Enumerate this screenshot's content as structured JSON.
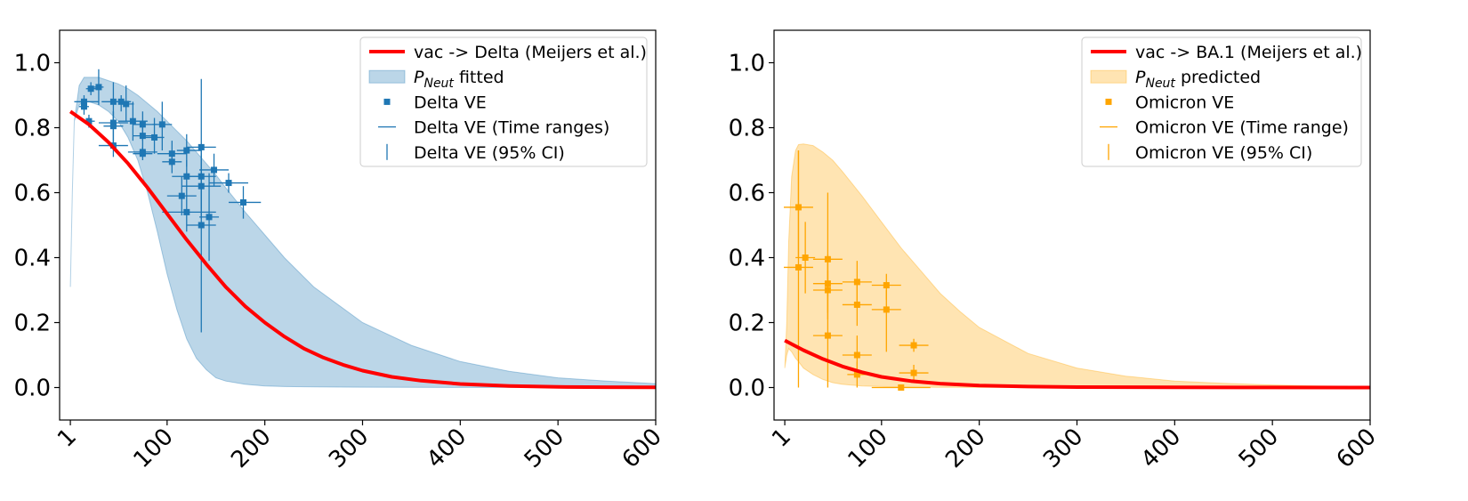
{
  "chart_data": [
    {
      "type": "line",
      "panel": "left",
      "xlim": [
        -10,
        600
      ],
      "ylim": [
        -0.1,
        1.1
      ],
      "xticks": [
        1,
        100,
        200,
        300,
        400,
        500,
        600
      ],
      "xtick_labels": [
        "1",
        "100",
        "200",
        "300",
        "400",
        "500",
        "600"
      ],
      "yticks": [
        0.0,
        0.2,
        0.4,
        0.6,
        0.8,
        1.0
      ],
      "ytick_labels": [
        "0.0",
        "0.2",
        "0.4",
        "0.6",
        "0.8",
        "1.0"
      ],
      "legend_position": "top-right",
      "colors": {
        "line": "#ff0000",
        "band": "#1f77b4",
        "points": "#1f77b4"
      },
      "legend": [
        {
          "kind": "line",
          "text": "vac -> Delta (Meijers et al.)"
        },
        {
          "kind": "band",
          "prefix": "P",
          "sub": "Neut",
          "text": " fitted"
        },
        {
          "kind": "marker",
          "text": "Delta VE"
        },
        {
          "kind": "hbar",
          "text": "Delta VE (Time ranges)"
        },
        {
          "kind": "vbar",
          "text": "Delta VE (95% CI)"
        }
      ],
      "line": {
        "x": [
          1,
          20,
          40,
          60,
          80,
          100,
          120,
          140,
          160,
          180,
          200,
          220,
          240,
          260,
          280,
          300,
          330,
          360,
          400,
          450,
          500,
          550,
          600
        ],
        "y": [
          0.85,
          0.81,
          0.755,
          0.69,
          0.615,
          0.535,
          0.455,
          0.38,
          0.31,
          0.25,
          0.2,
          0.157,
          0.12,
          0.092,
          0.07,
          0.052,
          0.033,
          0.021,
          0.011,
          0.005,
          0.002,
          0.001,
          0.0005
        ]
      },
      "band": {
        "x": [
          1,
          3,
          5,
          10,
          15,
          20,
          30,
          40,
          50,
          60,
          70,
          80,
          90,
          100,
          110,
          120,
          130,
          140,
          150,
          160,
          180,
          200,
          220,
          250,
          300,
          350,
          400,
          450,
          500,
          550,
          600
        ],
        "upper": [
          0.31,
          0.6,
          0.82,
          0.93,
          0.955,
          0.955,
          0.955,
          0.945,
          0.935,
          0.92,
          0.9,
          0.875,
          0.85,
          0.82,
          0.79,
          0.76,
          0.725,
          0.69,
          0.655,
          0.615,
          0.54,
          0.47,
          0.4,
          0.31,
          0.2,
          0.13,
          0.08,
          0.05,
          0.03,
          0.02,
          0.012
        ],
        "lower": [
          0.31,
          0.6,
          0.82,
          0.87,
          0.88,
          0.88,
          0.87,
          0.85,
          0.82,
          0.77,
          0.7,
          0.6,
          0.48,
          0.35,
          0.24,
          0.15,
          0.09,
          0.055,
          0.03,
          0.02,
          0.01,
          0.005,
          0.003,
          0.002,
          0.001,
          0.0005,
          0.0003,
          0.0002,
          0.0001,
          0.0,
          0.0
        ]
      },
      "points": [
        {
          "x": 15,
          "y": 0.88,
          "xerr": [
            10,
            15
          ],
          "ci": [
            0.86,
            0.9
          ]
        },
        {
          "x": 15,
          "y": 0.865,
          "xerr": [
            5,
            5
          ],
          "ci": [
            0.84,
            0.89
          ]
        },
        {
          "x": 20,
          "y": 0.82,
          "xerr": [
            6,
            6
          ],
          "ci": [
            0.8,
            0.84
          ]
        },
        {
          "x": 22,
          "y": 0.92,
          "xerr": [
            5,
            5
          ],
          "ci": [
            0.9,
            0.94
          ]
        },
        {
          "x": 30,
          "y": 0.925,
          "xerr": [
            5,
            5
          ],
          "ci": [
            0.87,
            0.98
          ]
        },
        {
          "x": 45,
          "y": 0.88,
          "xerr": [
            12,
            15
          ],
          "ci": [
            0.82,
            0.94
          ]
        },
        {
          "x": 45,
          "y": 0.815,
          "xerr": [
            15,
            15
          ],
          "ci": [
            0.77,
            0.85
          ]
        },
        {
          "x": 45,
          "y": 0.805,
          "xerr": [
            10,
            10
          ],
          "ci": [
            0.75,
            0.85
          ]
        },
        {
          "x": 45,
          "y": 0.745,
          "xerr": [
            15,
            15
          ],
          "ci": [
            0.71,
            0.77
          ]
        },
        {
          "x": 53,
          "y": 0.88,
          "xerr": [
            10,
            10
          ],
          "ci": [
            0.85,
            0.9
          ]
        },
        {
          "x": 58,
          "y": 0.873,
          "xerr": [
            8,
            8
          ],
          "ci": [
            0.82,
            0.93
          ]
        },
        {
          "x": 65,
          "y": 0.82,
          "xerr": [
            15,
            15
          ],
          "ci": [
            0.76,
            0.88
          ]
        },
        {
          "x": 75,
          "y": 0.81,
          "xerr": [
            10,
            15
          ],
          "ci": [
            0.76,
            0.85
          ]
        },
        {
          "x": 75,
          "y": 0.775,
          "xerr": [
            10,
            10
          ],
          "ci": [
            0.73,
            0.82
          ]
        },
        {
          "x": 75,
          "y": 0.725,
          "xerr": [
            15,
            15
          ],
          "ci": [
            0.71,
            0.74
          ]
        },
        {
          "x": 75,
          "y": 0.72,
          "xerr": [
            10,
            10
          ],
          "ci": [
            0.7,
            0.74
          ]
        },
        {
          "x": 87,
          "y": 0.77,
          "xerr": [
            10,
            10
          ],
          "ci": [
            0.72,
            0.83
          ]
        },
        {
          "x": 95,
          "y": 0.81,
          "xerr": [
            10,
            10
          ],
          "ci": [
            0.73,
            0.88
          ]
        },
        {
          "x": 105,
          "y": 0.72,
          "xerr": [
            15,
            15
          ],
          "ci": [
            0.68,
            0.76
          ]
        },
        {
          "x": 105,
          "y": 0.695,
          "xerr": [
            10,
            10
          ],
          "ci": [
            0.66,
            0.73
          ]
        },
        {
          "x": 115,
          "y": 0.59,
          "xerr": [
            15,
            15
          ],
          "ci": [
            0.53,
            0.65
          ]
        },
        {
          "x": 120,
          "y": 0.54,
          "xerr": [
            25,
            30
          ],
          "ci": [
            0.48,
            0.6
          ]
        },
        {
          "x": 120,
          "y": 0.73,
          "xerr": [
            10,
            15
          ],
          "ci": [
            0.68,
            0.78
          ]
        },
        {
          "x": 120,
          "y": 0.65,
          "xerr": [
            15,
            15
          ],
          "ci": [
            0.6,
            0.7
          ]
        },
        {
          "x": 135,
          "y": 0.74,
          "xerr": [
            15,
            15
          ],
          "ci": [
            0.52,
            0.95
          ]
        },
        {
          "x": 135,
          "y": 0.65,
          "xerr": [
            15,
            15
          ],
          "ci": [
            0.58,
            0.72
          ]
        },
        {
          "x": 135,
          "y": 0.62,
          "xerr": [
            20,
            20
          ],
          "ci": [
            0.55,
            0.69
          ]
        },
        {
          "x": 135,
          "y": 0.5,
          "xerr": [
            15,
            15
          ],
          "ci": [
            0.17,
            0.75
          ]
        },
        {
          "x": 143,
          "y": 0.525,
          "xerr": [
            10,
            10
          ],
          "ci": [
            0.39,
            0.66
          ]
        },
        {
          "x": 148,
          "y": 0.67,
          "xerr": [
            15,
            15
          ],
          "ci": [
            0.62,
            0.72
          ]
        },
        {
          "x": 163,
          "y": 0.63,
          "xerr": [
            20,
            20
          ],
          "ci": [
            0.6,
            0.66
          ]
        },
        {
          "x": 178,
          "y": 0.57,
          "xerr": [
            15,
            18
          ],
          "ci": [
            0.52,
            0.62
          ]
        }
      ]
    },
    {
      "type": "line",
      "panel": "right",
      "xlim": [
        -10,
        600
      ],
      "ylim": [
        -0.1,
        1.1
      ],
      "xticks": [
        1,
        100,
        200,
        300,
        400,
        500,
        600
      ],
      "xtick_labels": [
        "1",
        "100",
        "200",
        "300",
        "400",
        "500",
        "600"
      ],
      "yticks": [
        0.0,
        0.2,
        0.4,
        0.6,
        0.8,
        1.0
      ],
      "ytick_labels": [
        "0.0",
        "0.2",
        "0.4",
        "0.6",
        "0.8",
        "1.0"
      ],
      "legend_position": "top-right",
      "colors": {
        "line": "#ff0000",
        "band": "#ffa500",
        "points": "#ffa500"
      },
      "legend": [
        {
          "kind": "line",
          "text": "vac -> BA.1 (Meijers et al.)"
        },
        {
          "kind": "band",
          "prefix": "P",
          "sub": "Neut",
          "text": " predicted"
        },
        {
          "kind": "marker",
          "text": "Omicron VE"
        },
        {
          "kind": "hbar",
          "text": "Omicron VE (Time range)"
        },
        {
          "kind": "vbar",
          "text": "Omicron VE (95% CI)"
        }
      ],
      "line": {
        "x": [
          1,
          20,
          40,
          60,
          80,
          100,
          130,
          160,
          200,
          250,
          300,
          400,
          500,
          600
        ],
        "y": [
          0.145,
          0.115,
          0.088,
          0.065,
          0.047,
          0.033,
          0.02,
          0.012,
          0.006,
          0.003,
          0.0015,
          0.0005,
          0.0002,
          0.0001
        ]
      },
      "band": {
        "x": [
          1,
          3,
          5,
          8,
          12,
          15,
          20,
          30,
          40,
          50,
          60,
          80,
          100,
          120,
          140,
          160,
          180,
          200,
          250,
          300,
          350,
          400,
          450,
          500,
          550,
          600
        ],
        "upper": [
          0.06,
          0.2,
          0.45,
          0.65,
          0.73,
          0.748,
          0.75,
          0.745,
          0.725,
          0.7,
          0.665,
          0.59,
          0.51,
          0.43,
          0.36,
          0.29,
          0.235,
          0.185,
          0.105,
          0.06,
          0.035,
          0.02,
          0.013,
          0.008,
          0.005,
          0.003
        ],
        "lower": [
          0.06,
          0.1,
          0.12,
          0.11,
          0.09,
          0.08,
          0.06,
          0.04,
          0.025,
          0.015,
          0.01,
          0.005,
          0.003,
          0.002,
          0.001,
          0.0007,
          0.0005,
          0.0003,
          0.0002,
          0.0001,
          0.0,
          0.0,
          0.0,
          0.0,
          0.0,
          0.0
        ]
      },
      "points": [
        {
          "x": 15,
          "y": 0.555,
          "xerr": [
            15,
            15
          ],
          "ci": [
            0.4,
            0.73
          ]
        },
        {
          "x": 15,
          "y": 0.37,
          "xerr": [
            15,
            15
          ],
          "ci": [
            0.0,
            0.73
          ]
        },
        {
          "x": 22,
          "y": 0.4,
          "xerr": [
            10,
            10
          ],
          "ci": [
            0.29,
            0.51
          ]
        },
        {
          "x": 45,
          "y": 0.395,
          "xerr": [
            15,
            15
          ],
          "ci": [
            0.28,
            0.6
          ]
        },
        {
          "x": 45,
          "y": 0.32,
          "xerr": [
            15,
            15
          ],
          "ci": [
            0.23,
            0.41
          ]
        },
        {
          "x": 45,
          "y": 0.3,
          "xerr": [
            15,
            15
          ],
          "ci": [
            0.21,
            0.39
          ]
        },
        {
          "x": 45,
          "y": 0.16,
          "xerr": [
            15,
            15
          ],
          "ci": [
            0.0,
            0.36
          ]
        },
        {
          "x": 75,
          "y": 0.325,
          "xerr": [
            15,
            15
          ],
          "ci": [
            0.26,
            0.39
          ]
        },
        {
          "x": 75,
          "y": 0.255,
          "xerr": [
            15,
            15
          ],
          "ci": [
            0.19,
            0.32
          ]
        },
        {
          "x": 75,
          "y": 0.1,
          "xerr": [
            15,
            15
          ],
          "ci": [
            0.04,
            0.16
          ]
        },
        {
          "x": 75,
          "y": 0.04,
          "xerr": [
            10,
            10
          ],
          "ci": [
            0.0,
            0.08
          ]
        },
        {
          "x": 105,
          "y": 0.315,
          "xerr": [
            15,
            15
          ],
          "ci": [
            0.27,
            0.35
          ]
        },
        {
          "x": 105,
          "y": 0.24,
          "xerr": [
            15,
            15
          ],
          "ci": [
            0.11,
            0.3
          ]
        },
        {
          "x": 120,
          "y": 0.0,
          "xerr": [
            30,
            30
          ],
          "ci": [
            0.0,
            0.0
          ]
        },
        {
          "x": 133,
          "y": 0.13,
          "xerr": [
            15,
            15
          ],
          "ci": [
            0.11,
            0.15
          ]
        },
        {
          "x": 133,
          "y": 0.045,
          "xerr": [
            15,
            15
          ],
          "ci": [
            0.02,
            0.07
          ]
        }
      ]
    }
  ]
}
